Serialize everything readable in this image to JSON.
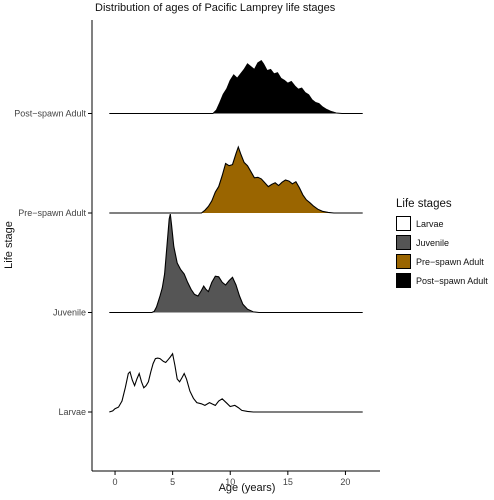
{
  "chart_data": {
    "type": "ridgeline",
    "title": "Distribution of ages of Pacific Lamprey life stages",
    "xlabel": "Age (years)",
    "ylabel": "Life stage",
    "x_ticks": [
      0,
      5,
      10,
      15,
      20
    ],
    "xlim": [
      -2,
      23
    ],
    "categories": [
      "Larvae",
      "Juvenile",
      "Pre−spawn Adult",
      "Post−spawn Adult"
    ],
    "legend": {
      "title": "Life stages",
      "position": "right",
      "entries": [
        "Larvae",
        "Juvenile",
        "Pre−spawn Adult",
        "Post−spawn Adult"
      ]
    },
    "series": [
      {
        "name": "Larvae",
        "color": "#ffffff",
        "range": [
          -0.5,
          21.5
        ],
        "density": [
          [
            -0.5,
            0
          ],
          [
            -0.2,
            0.02
          ],
          [
            0.0,
            0.06
          ],
          [
            0.3,
            0.09
          ],
          [
            0.6,
            0.2
          ],
          [
            0.9,
            0.45
          ],
          [
            1.15,
            0.7
          ],
          [
            1.3,
            0.73
          ],
          [
            1.5,
            0.58
          ],
          [
            1.7,
            0.48
          ],
          [
            1.9,
            0.6
          ],
          [
            2.1,
            0.7
          ],
          [
            2.3,
            0.55
          ],
          [
            2.5,
            0.44
          ],
          [
            2.7,
            0.48
          ],
          [
            2.9,
            0.55
          ],
          [
            3.1,
            0.73
          ],
          [
            3.3,
            0.88
          ],
          [
            3.5,
            0.97
          ],
          [
            3.7,
            0.98
          ],
          [
            3.9,
            0.97
          ],
          [
            4.2,
            0.92
          ],
          [
            4.4,
            0.9
          ],
          [
            4.6,
            0.95
          ],
          [
            4.8,
            1.0
          ],
          [
            5.0,
            1.06
          ],
          [
            5.2,
            0.85
          ],
          [
            5.4,
            0.6
          ],
          [
            5.6,
            0.55
          ],
          [
            5.8,
            0.62
          ],
          [
            6.0,
            0.7
          ],
          [
            6.2,
            0.6
          ],
          [
            6.5,
            0.38
          ],
          [
            6.8,
            0.25
          ],
          [
            7.1,
            0.17
          ],
          [
            7.5,
            0.15
          ],
          [
            7.8,
            0.12
          ],
          [
            8.2,
            0.17
          ],
          [
            8.4,
            0.15
          ],
          [
            8.7,
            0.12
          ],
          [
            9.0,
            0.2
          ],
          [
            9.3,
            0.24
          ],
          [
            9.7,
            0.16
          ],
          [
            10.0,
            0.1
          ],
          [
            10.4,
            0.12
          ],
          [
            10.7,
            0.08
          ],
          [
            11.0,
            0.03
          ],
          [
            11.5,
            0.01
          ],
          [
            12.0,
            0
          ],
          [
            21.5,
            0
          ]
        ]
      },
      {
        "name": "Juvenile",
        "color": "#555555",
        "range": [
          -0.5,
          21.5
        ],
        "density": [
          [
            -0.5,
            0
          ],
          [
            3.2,
            0
          ],
          [
            3.4,
            0.02
          ],
          [
            3.6,
            0.1
          ],
          [
            3.9,
            0.3
          ],
          [
            4.1,
            0.45
          ],
          [
            4.3,
            0.7
          ],
          [
            4.5,
            1.2
          ],
          [
            4.7,
            1.7
          ],
          [
            4.8,
            1.79
          ],
          [
            4.9,
            1.6
          ],
          [
            5.1,
            1.2
          ],
          [
            5.4,
            0.9
          ],
          [
            5.7,
            0.78
          ],
          [
            6.0,
            0.7
          ],
          [
            6.3,
            0.55
          ],
          [
            6.6,
            0.42
          ],
          [
            6.9,
            0.33
          ],
          [
            7.2,
            0.3
          ],
          [
            7.5,
            0.4
          ],
          [
            7.7,
            0.48
          ],
          [
            7.9,
            0.42
          ],
          [
            8.1,
            0.38
          ],
          [
            8.4,
            0.55
          ],
          [
            8.7,
            0.66
          ],
          [
            9.0,
            0.65
          ],
          [
            9.3,
            0.55
          ],
          [
            9.6,
            0.5
          ],
          [
            9.9,
            0.58
          ],
          [
            10.2,
            0.64
          ],
          [
            10.5,
            0.5
          ],
          [
            10.8,
            0.3
          ],
          [
            11.1,
            0.15
          ],
          [
            11.5,
            0.06
          ],
          [
            12.0,
            0.01
          ],
          [
            12.5,
            0
          ],
          [
            21.5,
            0
          ]
        ]
      },
      {
        "name": "Pre−spawn Adult",
        "color": "#9a6500",
        "range": [
          -0.5,
          21.5
        ],
        "density": [
          [
            -0.5,
            0
          ],
          [
            7.5,
            0
          ],
          [
            7.8,
            0.05
          ],
          [
            8.1,
            0.12
          ],
          [
            8.4,
            0.22
          ],
          [
            8.7,
            0.38
          ],
          [
            9.0,
            0.48
          ],
          [
            9.3,
            0.68
          ],
          [
            9.6,
            0.9
          ],
          [
            9.9,
            0.86
          ],
          [
            10.2,
            0.88
          ],
          [
            10.5,
            1.08
          ],
          [
            10.7,
            1.2
          ],
          [
            10.9,
            1.08
          ],
          [
            11.2,
            0.92
          ],
          [
            11.5,
            0.86
          ],
          [
            11.8,
            0.75
          ],
          [
            12.1,
            0.64
          ],
          [
            12.4,
            0.65
          ],
          [
            12.7,
            0.62
          ],
          [
            13.0,
            0.55
          ],
          [
            13.3,
            0.48
          ],
          [
            13.6,
            0.52
          ],
          [
            13.9,
            0.55
          ],
          [
            14.2,
            0.5
          ],
          [
            14.5,
            0.56
          ],
          [
            14.8,
            0.6
          ],
          [
            15.1,
            0.58
          ],
          [
            15.4,
            0.53
          ],
          [
            15.7,
            0.57
          ],
          [
            16.0,
            0.46
          ],
          [
            16.3,
            0.33
          ],
          [
            16.6,
            0.24
          ],
          [
            16.9,
            0.19
          ],
          [
            17.2,
            0.13
          ],
          [
            17.6,
            0.07
          ],
          [
            18.0,
            0.03
          ],
          [
            18.5,
            0.01
          ],
          [
            19.0,
            0
          ],
          [
            21.5,
            0
          ]
        ]
      },
      {
        "name": "Post−spawn Adult",
        "color": "#000000",
        "range": [
          -0.5,
          21.5
        ],
        "density": [
          [
            -0.5,
            0
          ],
          [
            8.5,
            0
          ],
          [
            8.8,
            0.06
          ],
          [
            9.1,
            0.2
          ],
          [
            9.4,
            0.35
          ],
          [
            9.7,
            0.45
          ],
          [
            10.0,
            0.6
          ],
          [
            10.3,
            0.7
          ],
          [
            10.6,
            0.64
          ],
          [
            10.9,
            0.72
          ],
          [
            11.2,
            0.8
          ],
          [
            11.5,
            0.9
          ],
          [
            11.8,
            0.85
          ],
          [
            12.1,
            0.8
          ],
          [
            12.4,
            0.92
          ],
          [
            12.7,
            0.96
          ],
          [
            12.9,
            0.9
          ],
          [
            13.2,
            0.78
          ],
          [
            13.5,
            0.8
          ],
          [
            13.8,
            0.72
          ],
          [
            14.1,
            0.74
          ],
          [
            14.4,
            0.64
          ],
          [
            14.7,
            0.6
          ],
          [
            15.0,
            0.55
          ],
          [
            15.3,
            0.58
          ],
          [
            15.6,
            0.5
          ],
          [
            15.9,
            0.44
          ],
          [
            16.2,
            0.46
          ],
          [
            16.5,
            0.38
          ],
          [
            16.8,
            0.34
          ],
          [
            17.1,
            0.25
          ],
          [
            17.4,
            0.2
          ],
          [
            17.7,
            0.18
          ],
          [
            18.0,
            0.12
          ],
          [
            18.3,
            0.08
          ],
          [
            18.7,
            0.04
          ],
          [
            19.2,
            0.01
          ],
          [
            19.7,
            0
          ],
          [
            21.5,
            0
          ]
        ]
      }
    ]
  }
}
